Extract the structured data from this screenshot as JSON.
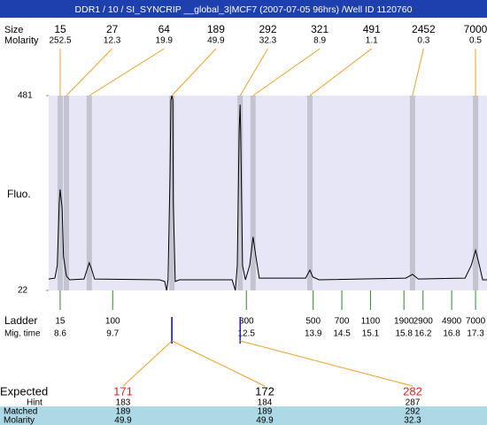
{
  "title": "DDR1 / 10 / SI_SYNCRIP __global_3|MCF7 (2007-07-05 96hrs) /Well ID 1120760",
  "peaks": {
    "size_label": "Size",
    "molarity_label": "Molarity",
    "sizes": [
      15,
      27,
      64,
      189,
      292,
      321,
      491,
      2452,
      7000
    ],
    "molarities": [
      252.5,
      12.3,
      19.9,
      49.9,
      32.3,
      8.9,
      1.1,
      0.3,
      0.5
    ],
    "mig_times": [
      8.6,
      8.73,
      9.21,
      10.94,
      12.37,
      12.64,
      13.83,
      15.98,
      17.3
    ]
  },
  "plot": {
    "y_label": "Fluo.",
    "xlim": [
      8.36,
      17.54
    ],
    "ylim": [
      22,
      481
    ],
    "yticks": [
      22,
      481
    ],
    "trace": {
      "x": [
        8.36,
        8.49,
        8.54,
        8.58,
        8.6,
        8.64,
        8.67,
        8.73,
        8.8,
        9.1,
        9.18,
        9.21,
        9.25,
        9.32,
        10.68,
        10.79,
        10.83,
        10.86,
        10.9,
        10.92,
        10.94,
        10.96,
        10.97,
        11.01,
        11.1,
        12.2,
        12.27,
        12.31,
        12.35,
        12.37,
        12.38,
        12.42,
        12.48,
        12.57,
        12.64,
        12.7,
        12.77,
        13.74,
        13.83,
        13.89,
        14.02,
        15.84,
        15.98,
        16.1,
        17.08,
        17.21,
        17.3,
        17.38,
        17.45,
        17.54
      ],
      "y": [
        49,
        51,
        81,
        228,
        260,
        218,
        102,
        56,
        47,
        49,
        77,
        87,
        75,
        49,
        47,
        43,
        22,
        47,
        292,
        470,
        481,
        470,
        228,
        43,
        47,
        47,
        22,
        81,
        397,
        460,
        397,
        81,
        47,
        81,
        148,
        102,
        51,
        51,
        70,
        54,
        47,
        51,
        60,
        49,
        51,
        81,
        117,
        81,
        47,
        47
      ]
    }
  },
  "ladder": {
    "label": "Ladder",
    "mig_label": "Mig. time",
    "sizes": [
      15,
      100,
      300,
      500,
      700,
      1100,
      1900,
      2900,
      4900,
      7000
    ],
    "mig_times": [
      8.6,
      9.7,
      12.5,
      13.9,
      14.5,
      15.1,
      15.8,
      16.2,
      16.8,
      17.3
    ]
  },
  "matches": {
    "expected_label": "Expected",
    "hint_label": "Hint",
    "matched_label": "Matched",
    "molarity_label": "Molarity",
    "expected": [
      171,
      172,
      282
    ],
    "expected_colors": [
      "#e02020",
      "#000000",
      "#e02020"
    ],
    "hint": [
      183,
      184,
      287
    ],
    "matched": [
      189,
      189,
      292
    ],
    "molarity": [
      49.9,
      49.9,
      32.3
    ]
  }
}
